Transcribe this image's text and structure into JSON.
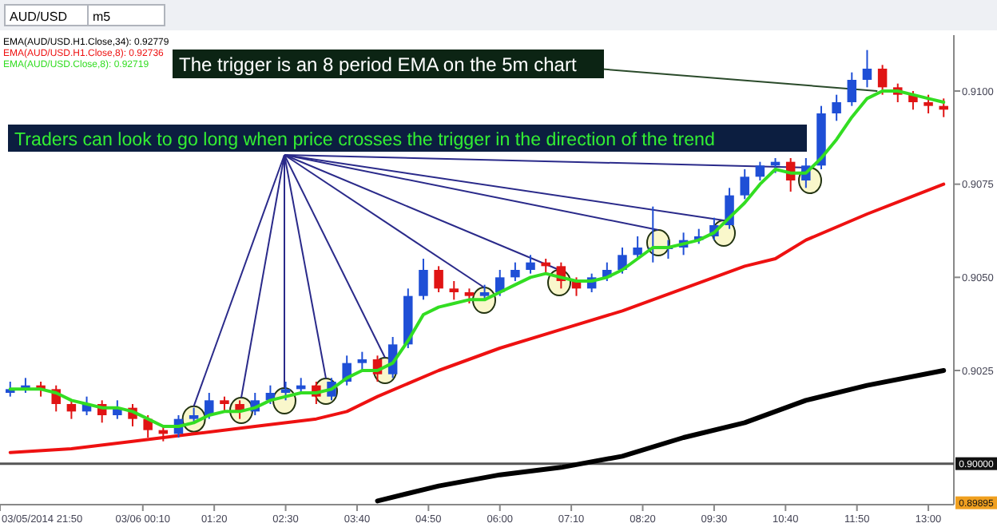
{
  "chart_data": {
    "type": "candlestick",
    "legend": "top left",
    "annotations": [
      {
        "text": "The trigger is an 8 period EMA on the 5m chart",
        "x": "2014-03-06T12:10",
        "y": 0.91
      },
      {
        "text": "Traders can look to go long when price crosses the trigger in the direction of the trend",
        "x": "2014-03-06T01:00",
        "y": 0.9012
      },
      "AUD/USD",
      "m5",
      {
        "text": "0.89895",
        "y": 0.89895
      }
    ],
    "xlim": [
      "2014-03-05T21:50",
      "2014-03-06T13:25"
    ],
    "xticks": [
      {
        "value": "2014-03-05T21:50",
        "label": "03/05/2014 21:50"
      },
      {
        "value": "2014-03-06T00:10",
        "label": "03/06 00:10"
      },
      {
        "value": "2014-03-06T01:20",
        "label": "01:20"
      },
      {
        "value": "2014-03-06T02:30",
        "label": "02:30"
      },
      {
        "value": "2014-03-06T03:40",
        "label": "03:40"
      },
      {
        "value": "2014-03-06T04:50",
        "label": "04:50"
      },
      {
        "value": "2014-03-06T06:00",
        "label": "06:00"
      },
      {
        "value": "2014-03-06T07:10",
        "label": "07:10"
      },
      {
        "value": "2014-03-06T08:20",
        "label": "08:20"
      },
      {
        "value": "2014-03-06T09:30",
        "label": "09:30"
      },
      {
        "value": "2014-03-06T10:40",
        "label": "10:40"
      },
      {
        "value": "2014-03-06T11:50",
        "label": "11:50"
      },
      {
        "value": "2014-03-06T13:00",
        "label": "13:00"
      }
    ],
    "ylim": [
      0.8989,
      0.9115
    ],
    "yticks": [
      {
        "value": 0.9025,
        "label": "0.9025"
      },
      {
        "value": 0.905,
        "label": "0.9050"
      },
      {
        "value": 0.9075,
        "label": "0.9075"
      },
      {
        "value": 0.91,
        "label": "0.9100"
      }
    ],
    "ref_lines": [
      {
        "axis": "y",
        "value": 0.9,
        "label": "0.90000",
        "color": "#555555",
        "line_style": "solid"
      }
    ],
    "x": [
      "2014-03-05T22:00",
      "2014-03-05T22:15",
      "2014-03-05T22:30",
      "2014-03-05T22:45",
      "2014-03-05T23:00",
      "2014-03-05T23:15",
      "2014-03-05T23:30",
      "2014-03-05T23:45",
      "2014-03-06T00:00",
      "2014-03-06T00:15",
      "2014-03-06T00:30",
      "2014-03-06T00:45",
      "2014-03-06T01:00",
      "2014-03-06T01:15",
      "2014-03-06T01:30",
      "2014-03-06T01:45",
      "2014-03-06T02:00",
      "2014-03-06T02:15",
      "2014-03-06T02:30",
      "2014-03-06T02:45",
      "2014-03-06T03:00",
      "2014-03-06T03:15",
      "2014-03-06T03:30",
      "2014-03-06T03:45",
      "2014-03-06T04:00",
      "2014-03-06T04:15",
      "2014-03-06T04:30",
      "2014-03-06T04:45",
      "2014-03-06T05:00",
      "2014-03-06T05:15",
      "2014-03-06T05:30",
      "2014-03-06T05:45",
      "2014-03-06T06:00",
      "2014-03-06T06:15",
      "2014-03-06T06:30",
      "2014-03-06T06:45",
      "2014-03-06T07:00",
      "2014-03-06T07:15",
      "2014-03-06T07:30",
      "2014-03-06T07:45",
      "2014-03-06T08:00",
      "2014-03-06T08:15",
      "2014-03-06T08:30",
      "2014-03-06T08:45",
      "2014-03-06T09:00",
      "2014-03-06T09:15",
      "2014-03-06T09:30",
      "2014-03-06T09:45",
      "2014-03-06T10:00",
      "2014-03-06T10:15",
      "2014-03-06T10:30",
      "2014-03-06T10:45",
      "2014-03-06T11:00",
      "2014-03-06T11:15",
      "2014-03-06T11:30",
      "2014-03-06T11:45",
      "2014-03-06T12:00",
      "2014-03-06T12:15",
      "2014-03-06T12:30",
      "2014-03-06T12:45",
      "2014-03-06T13:00",
      "2014-03-06T13:15"
    ],
    "ohlc": [
      [
        0.9019,
        0.9022,
        0.9018,
        0.902
      ],
      [
        0.902,
        0.9023,
        0.9019,
        0.9021
      ],
      [
        0.9021,
        0.9022,
        0.9018,
        0.902
      ],
      [
        0.902,
        0.9021,
        0.9014,
        0.9016
      ],
      [
        0.9016,
        0.9017,
        0.9012,
        0.9014
      ],
      [
        0.9014,
        0.9018,
        0.9013,
        0.9016
      ],
      [
        0.9016,
        0.9017,
        0.9011,
        0.9013
      ],
      [
        0.9013,
        0.9017,
        0.9012,
        0.9015
      ],
      [
        0.9015,
        0.9016,
        0.901,
        0.9012
      ],
      [
        0.9012,
        0.9013,
        0.9007,
        0.9009
      ],
      [
        0.9009,
        0.901,
        0.9006,
        0.9008
      ],
      [
        0.9008,
        0.9013,
        0.9007,
        0.9012
      ],
      [
        0.9012,
        0.9015,
        0.9011,
        0.9013
      ],
      [
        0.9013,
        0.9019,
        0.9012,
        0.9017
      ],
      [
        0.9017,
        0.9018,
        0.9014,
        0.9016
      ],
      [
        0.9016,
        0.9017,
        0.9012,
        0.9014
      ],
      [
        0.9014,
        0.9019,
        0.9013,
        0.9017
      ],
      [
        0.9017,
        0.9021,
        0.9016,
        0.9019
      ],
      [
        0.9019,
        0.9022,
        0.9017,
        0.902
      ],
      [
        0.902,
        0.9023,
        0.9019,
        0.9021
      ],
      [
        0.9021,
        0.9022,
        0.9016,
        0.9018
      ],
      [
        0.9018,
        0.9023,
        0.9017,
        0.9022
      ],
      [
        0.9022,
        0.9029,
        0.9021,
        0.9027
      ],
      [
        0.9027,
        0.903,
        0.9025,
        0.9028
      ],
      [
        0.9028,
        0.9029,
        0.9022,
        0.9024
      ],
      [
        0.9024,
        0.9034,
        0.9023,
        0.9032
      ],
      [
        0.9032,
        0.9047,
        0.9031,
        0.9045
      ],
      [
        0.9045,
        0.9055,
        0.9044,
        0.9052
      ],
      [
        0.9052,
        0.9053,
        0.9046,
        0.9047
      ],
      [
        0.9047,
        0.9049,
        0.9044,
        0.9046
      ],
      [
        0.9046,
        0.9047,
        0.9043,
        0.9045
      ],
      [
        0.9045,
        0.9048,
        0.9044,
        0.9046
      ],
      [
        0.9046,
        0.9052,
        0.9045,
        0.905
      ],
      [
        0.905,
        0.9054,
        0.9049,
        0.9052
      ],
      [
        0.9052,
        0.9056,
        0.9051,
        0.9054
      ],
      [
        0.9054,
        0.9055,
        0.9051,
        0.9053
      ],
      [
        0.9053,
        0.9054,
        0.9047,
        0.9049
      ],
      [
        0.9049,
        0.905,
        0.9045,
        0.9047
      ],
      [
        0.9047,
        0.9051,
        0.9046,
        0.905
      ],
      [
        0.905,
        0.9054,
        0.9049,
        0.9052
      ],
      [
        0.9052,
        0.9058,
        0.9051,
        0.9056
      ],
      [
        0.9056,
        0.9061,
        0.9055,
        0.9058
      ],
      [
        0.9058,
        0.9069,
        0.9054,
        0.9058
      ],
      [
        0.9058,
        0.906,
        0.9055,
        0.9058
      ],
      [
        0.9058,
        0.9062,
        0.9056,
        0.906
      ],
      [
        0.906,
        0.9063,
        0.9059,
        0.9061
      ],
      [
        0.9061,
        0.9066,
        0.906,
        0.9064
      ],
      [
        0.9064,
        0.9074,
        0.9063,
        0.9072
      ],
      [
        0.9072,
        0.9079,
        0.9071,
        0.9077
      ],
      [
        0.9077,
        0.9081,
        0.9076,
        0.908
      ],
      [
        0.908,
        0.9082,
        0.9078,
        0.9081
      ],
      [
        0.9081,
        0.9082,
        0.9073,
        0.9076
      ],
      [
        0.9076,
        0.9082,
        0.9074,
        0.908
      ],
      [
        0.908,
        0.9096,
        0.9079,
        0.9094
      ],
      [
        0.9094,
        0.9099,
        0.9092,
        0.9097
      ],
      [
        0.9097,
        0.9105,
        0.9096,
        0.9103
      ],
      [
        0.9103,
        0.9111,
        0.9101,
        0.9106
      ],
      [
        0.9106,
        0.9107,
        0.9099,
        0.9101
      ],
      [
        0.9101,
        0.9102,
        0.9097,
        0.9099
      ],
      [
        0.9099,
        0.91,
        0.9095,
        0.9097
      ],
      [
        0.9097,
        0.9099,
        0.9094,
        0.9096
      ],
      [
        0.9096,
        0.9098,
        0.9093,
        0.9095
      ]
    ],
    "series": [
      {
        "type": "line",
        "name": "EMA(AUD/USD.H1.Close,34): 0.92779",
        "color": "#000000",
        "x": [
          "2014-03-06T04:00",
          "2014-03-06T05:00",
          "2014-03-06T06:00",
          "2014-03-06T07:00",
          "2014-03-06T08:00",
          "2014-03-06T09:00",
          "2014-03-06T10:00",
          "2014-03-06T11:00",
          "2014-03-06T12:00",
          "2014-03-06T13:15"
        ],
        "values": [
          0.899,
          0.8994,
          0.8997,
          0.8999,
          0.9002,
          0.9007,
          0.9011,
          0.9017,
          0.9021,
          0.9025
        ]
      },
      {
        "type": "line",
        "name": "EMA(AUD/USD.H1.Close,8): 0.92736",
        "color": "#ee1111",
        "x": [
          "2014-03-05T22:00",
          "2014-03-05T23:00",
          "2014-03-06T00:00",
          "2014-03-06T01:00",
          "2014-03-06T02:00",
          "2014-03-06T03:00",
          "2014-03-06T03:30",
          "2014-03-06T04:00",
          "2014-03-06T05:00",
          "2014-03-06T06:00",
          "2014-03-06T07:00",
          "2014-03-06T08:00",
          "2014-03-06T09:00",
          "2014-03-06T10:00",
          "2014-03-06T10:30",
          "2014-03-06T11:00",
          "2014-03-06T12:00",
          "2014-03-06T13:15"
        ],
        "values": [
          0.9003,
          0.9004,
          0.9006,
          0.9008,
          0.901,
          0.9012,
          0.9014,
          0.9018,
          0.9025,
          0.9031,
          0.9036,
          0.9041,
          0.9047,
          0.9053,
          0.9055,
          0.906,
          0.9067,
          0.9075
        ]
      },
      {
        "type": "line",
        "name": "EMA(AUD/USD.Close,8): 0.92719",
        "color": "#33dd22",
        "values": [
          0.902,
          0.902,
          0.902,
          0.9019,
          0.9017,
          0.9016,
          0.9015,
          0.9015,
          0.9014,
          0.9012,
          0.901,
          0.901,
          0.9011,
          0.9013,
          0.9014,
          0.9014,
          0.9015,
          0.9017,
          0.9018,
          0.9019,
          0.9019,
          0.902,
          0.9023,
          0.9025,
          0.9025,
          0.9027,
          0.9033,
          0.904,
          0.9042,
          0.9043,
          0.9044,
          0.9044,
          0.9046,
          0.9048,
          0.905,
          0.9051,
          0.905,
          0.9049,
          0.9049,
          0.905,
          0.9052,
          0.9055,
          0.9058,
          0.9058,
          0.9059,
          0.906,
          0.9062,
          0.9066,
          0.907,
          0.9075,
          0.9079,
          0.9078,
          0.9078,
          0.9082,
          0.9087,
          0.9093,
          0.9098,
          0.91,
          0.91,
          0.9099,
          0.9098,
          0.9097
        ]
      }
    ]
  }
}
